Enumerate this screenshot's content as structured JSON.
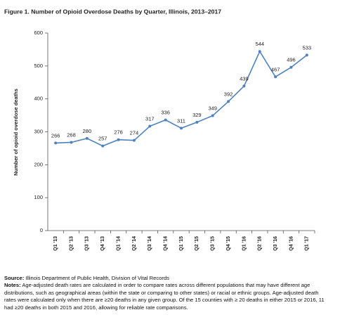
{
  "chart_data": {
    "type": "line",
    "title": "Figure 1.  Number of Opioid Overdose Deaths by Quarter, Illinois, 2013–2017",
    "y_label": "Number of opioid overdose deaths",
    "categories": [
      "Q1 '13",
      "Q2 '13",
      "Q3 '13",
      "Q4 '13",
      "Q1 '14",
      "Q2 '14",
      "Q3 '14",
      "Q4 '14",
      "Q1 '15",
      "Q2 '15",
      "Q3 '15",
      "Q4 '15",
      "Q1 '16",
      "Q2 '16",
      "Q3 '16",
      "Q4 '16",
      "Q1 '17"
    ],
    "values": [
      266,
      268,
      280,
      257,
      276,
      274,
      317,
      336,
      311,
      329,
      349,
      392,
      439,
      544,
      467,
      496,
      533
    ],
    "color": "#4f81bd",
    "ylim": [
      0,
      600
    ],
    "yticks": [
      0,
      100,
      200,
      300,
      400,
      500,
      600
    ],
    "grid": false
  },
  "footer": {
    "source_label": "Source:",
    "source": " Illinois Department of Public Health, Division of Vital Records",
    "notes_label": "Notes:",
    "notes": " Age-adjusted death rates are calculated in order to compare rates across different populations that may have different age distributions, such as geographical areas (within the state or comparing to other states) or racial or ethnic groups. Age-adjusted death rates were calculated only when there are ≥20 deaths in any given group. Of the 15 counties with ≥ 20 deaths in either 2015 or 2016, 11 had ≥20 deaths in both 2015 and 2016, allowing for reliable rate comparisons."
  }
}
